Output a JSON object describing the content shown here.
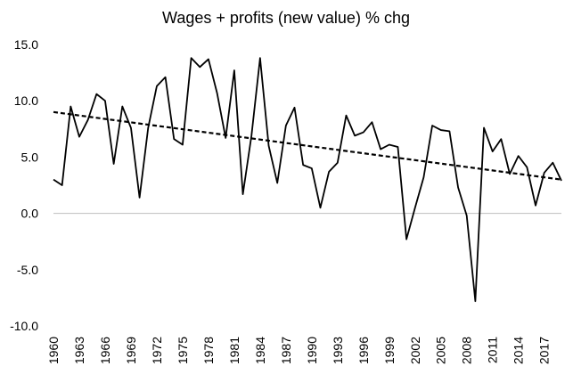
{
  "chart_data": {
    "type": "line",
    "title": "Wages + profits (new value) % chg",
    "xlabel": "",
    "ylabel": "",
    "ylim": [
      -10.0,
      15.0
    ],
    "y_ticks": [
      "15.0",
      "10.0",
      "5.0",
      "0.0",
      "-5.0",
      "-10.0"
    ],
    "y_tick_values": [
      15,
      10,
      5,
      0,
      -5,
      -10
    ],
    "x_tick_labels": [
      "1960",
      "1963",
      "1966",
      "1969",
      "1972",
      "1975",
      "1978",
      "1981",
      "1984",
      "1987",
      "1990",
      "1993",
      "1996",
      "1999",
      "2002",
      "2005",
      "2008",
      "2011",
      "2014",
      "2017"
    ],
    "grid": false,
    "legend": "none",
    "series": [
      {
        "name": "Wages + profits % chg",
        "style": "solid",
        "x": [
          1960,
          1961,
          1962,
          1963,
          1964,
          1965,
          1966,
          1967,
          1968,
          1969,
          1970,
          1971,
          1972,
          1973,
          1974,
          1975,
          1976,
          1977,
          1978,
          1979,
          1980,
          1981,
          1982,
          1983,
          1984,
          1985,
          1986,
          1987,
          1988,
          1989,
          1990,
          1991,
          1992,
          1993,
          1994,
          1995,
          1996,
          1997,
          1998,
          1999,
          2000,
          2001,
          2002,
          2003,
          2004,
          2005,
          2006,
          2007,
          2008,
          2009,
          2010,
          2011,
          2012,
          2013,
          2014,
          2015,
          2016,
          2017,
          2018,
          2019
        ],
        "values": [
          3.0,
          2.5,
          9.5,
          6.8,
          8.3,
          10.6,
          10.0,
          4.4,
          9.5,
          7.6,
          1.4,
          7.6,
          11.3,
          12.1,
          6.6,
          6.1,
          13.8,
          13.0,
          13.7,
          10.7,
          6.7,
          12.7,
          1.7,
          6.9,
          13.8,
          6.0,
          2.7,
          7.8,
          9.4,
          4.3,
          4.0,
          0.5,
          3.7,
          4.5,
          8.7,
          6.9,
          7.2,
          8.1,
          5.7,
          6.1,
          5.9,
          -2.3,
          0.5,
          3.2,
          7.8,
          7.4,
          7.3,
          2.3,
          -0.2,
          -7.8,
          7.6,
          5.5,
          6.6,
          3.5,
          5.1,
          4.1,
          0.7,
          3.6,
          4.5,
          2.9
        ]
      },
      {
        "name": "Linear trend",
        "style": "dashed",
        "x": [
          1960,
          2019
        ],
        "values": [
          9.0,
          3.0
        ]
      }
    ]
  }
}
